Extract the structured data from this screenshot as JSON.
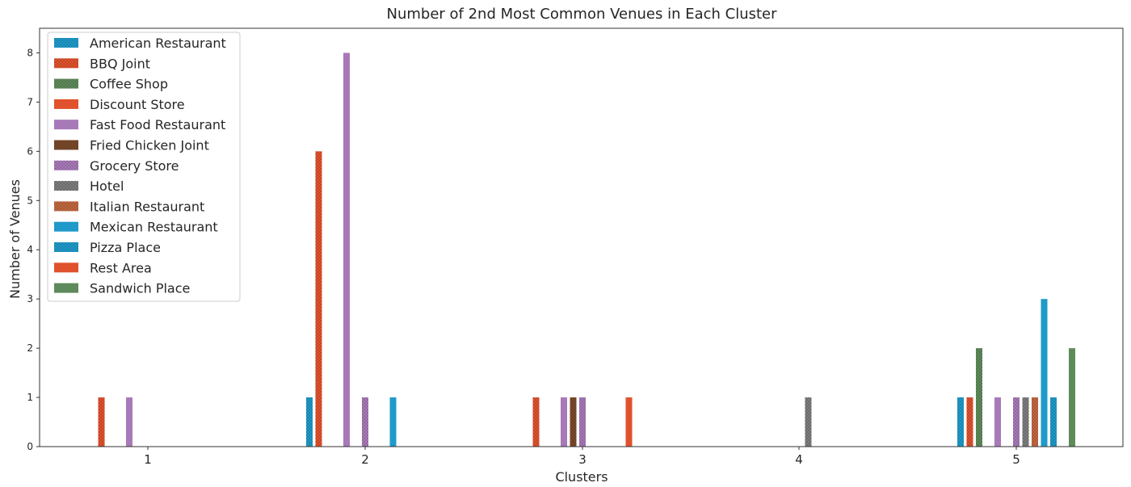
{
  "chart_data": {
    "type": "bar",
    "title": "Number of 2nd Most Common Venues in Each Cluster",
    "xlabel": "Clusters",
    "ylabel": "Number of Venues",
    "categories": [
      "1",
      "2",
      "3",
      "4",
      "5"
    ],
    "ylim": [
      0,
      8.5
    ],
    "yticks": [
      0,
      1,
      2,
      3,
      4,
      5,
      6,
      7,
      8
    ],
    "grid": false,
    "legend_position": "top-left",
    "series": [
      {
        "name": "American Restaurant",
        "color": "#1f9ac9",
        "hatch": "dots",
        "values": [
          0,
          1,
          0,
          0,
          1
        ]
      },
      {
        "name": "BBQ Joint",
        "color": "#e0522d",
        "hatch": "dots",
        "values": [
          1,
          6,
          1,
          0,
          1
        ]
      },
      {
        "name": "Coffee Shop",
        "color": "#5f8a5a",
        "hatch": "dots",
        "values": [
          0,
          0,
          0,
          0,
          2
        ]
      },
      {
        "name": "Discount Store",
        "color": "#e0522d",
        "hatch": "none",
        "values": [
          0,
          0,
          0,
          0,
          0
        ]
      },
      {
        "name": "Fast Food Restaurant",
        "color": "#a879b8",
        "hatch": "none",
        "values": [
          1,
          8,
          1,
          0,
          1
        ]
      },
      {
        "name": "Fried Chicken Joint",
        "color": "#7a4a2a",
        "hatch": "dots",
        "values": [
          0,
          0,
          1,
          0,
          0
        ]
      },
      {
        "name": "Grocery Store",
        "color": "#a879b8",
        "hatch": "dots",
        "values": [
          0,
          1,
          1,
          0,
          1
        ]
      },
      {
        "name": "Hotel",
        "color": "#7d7d7d",
        "hatch": "dots",
        "values": [
          0,
          0,
          0,
          1,
          1
        ]
      },
      {
        "name": "Italian Restaurant",
        "color": "#c0683f",
        "hatch": "dots",
        "values": [
          0,
          0,
          0,
          0,
          1
        ]
      },
      {
        "name": "Mexican Restaurant",
        "color": "#1f9ac9",
        "hatch": "none",
        "values": [
          0,
          1,
          0,
          0,
          3
        ]
      },
      {
        "name": "Pizza Place",
        "color": "#1f9ac9",
        "hatch": "dots",
        "values": [
          0,
          0,
          0,
          0,
          1
        ]
      },
      {
        "name": "Rest Area",
        "color": "#e0522d",
        "hatch": "none",
        "values": [
          0,
          0,
          1,
          0,
          0
        ]
      },
      {
        "name": "Sandwich Place",
        "color": "#5f8a5a",
        "hatch": "none",
        "values": [
          0,
          0,
          0,
          0,
          2
        ]
      }
    ]
  }
}
